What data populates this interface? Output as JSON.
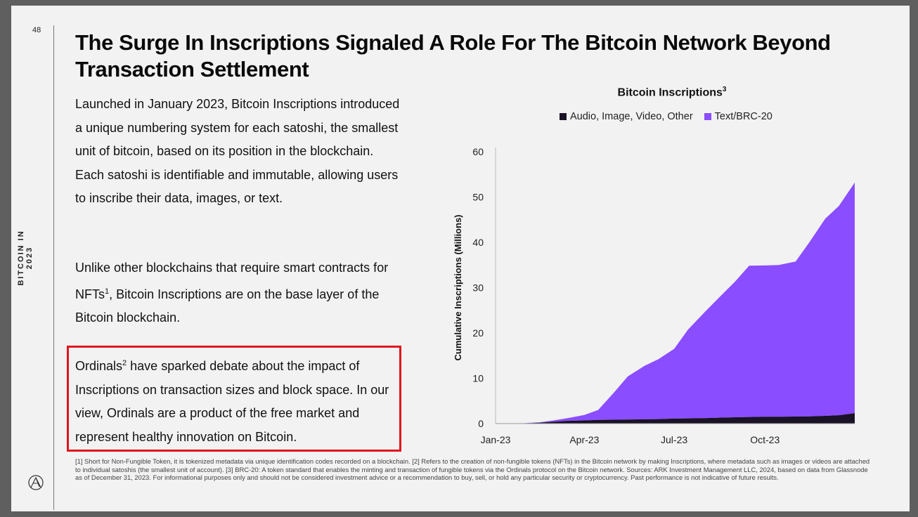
{
  "page_number": "48",
  "side_label": "BITCOIN IN 2023",
  "title": "The Surge In Inscriptions Signaled A Role For The Bitcoin Network Beyond Transaction Settlement",
  "paragraphs": {
    "p1": "Launched in January 2023, Bitcoin Inscriptions introduced a unique numbering system for each satoshi, the smallest unit of bitcoin, based on its position in the blockchain. Each satoshi is identifiable and immutable, allowing users to inscribe their data, images, or text.",
    "p2_before": "Unlike other blockchains that require smart contracts for NFTs",
    "p2_sup": "1",
    "p2_after": ", Bitcoin Inscriptions are on the base layer of the Bitcoin blockchain.",
    "p3_before": "Ordinals",
    "p3_sup": "2",
    "p3_after": " have sparked debate about the impact of Inscriptions on transaction sizes and block space. In our view, Ordinals are a product of the free market and represent healthy innovation on Bitcoin."
  },
  "footnote": "[1] Short for Non-Fungible Token, it is tokenized metadata via unique identification codes recorded on a blockchain. [2] Refers to the creation of non-fungible tokens (NFTs) in the Bitcoin network by making Inscriptions, where metadata such as images or videos are attached to individual satoshis (the smallest unit of account). [3] BRC-20: A token standard that enables the minting and transaction of fungible tokens via the Ordinals protocol on the Bitcoin network. Sources: ARK Investment Management LLC, 2024, based on data from Glassnode as of December 31, 2023. For informational purposes only and should not be considered investment advice or a recommendation to buy, sell, or hold any particular security or cryptocurrency. Past performance is not indicative of future results.",
  "chart_data": {
    "type": "area",
    "stacked": true,
    "title": "Bitcoin Inscriptions",
    "title_sup": "3",
    "ylabel": "Cumulative Inscriptions (Millions)",
    "xlabel": "",
    "ylim": [
      0,
      60
    ],
    "yticks": [
      0,
      10,
      20,
      30,
      40,
      50,
      60
    ],
    "xticks": [
      "Jan-23",
      "Apr-23",
      "Jul-23",
      "Oct-23"
    ],
    "xtick_dates": [
      "2023-01-01",
      "2023-04-01",
      "2023-07-01",
      "2023-10-01"
    ],
    "x_range": [
      "2023-01-01",
      "2023-12-31"
    ],
    "legend_position": "top",
    "colors": {
      "audio_image_video_other": "#1a1226",
      "text_brc20": "#8a4dff"
    },
    "x": [
      "2023-01-01",
      "2023-01-31",
      "2023-02-15",
      "2023-03-01",
      "2023-03-15",
      "2023-04-01",
      "2023-04-15",
      "2023-05-01",
      "2023-05-15",
      "2023-06-01",
      "2023-06-15",
      "2023-07-01",
      "2023-07-15",
      "2023-08-01",
      "2023-08-15",
      "2023-09-01",
      "2023-09-15",
      "2023-10-01",
      "2023-10-15",
      "2023-11-01",
      "2023-11-15",
      "2023-12-01",
      "2023-12-15",
      "2023-12-31"
    ],
    "series": [
      {
        "name": "Audio, Image, Video, Other",
        "values": [
          0,
          0.05,
          0.2,
          0.4,
          0.6,
          0.7,
          0.8,
          0.85,
          0.9,
          0.95,
          1.0,
          1.1,
          1.15,
          1.2,
          1.3,
          1.4,
          1.45,
          1.5,
          1.5,
          1.55,
          1.6,
          1.7,
          1.85,
          2.3
        ]
      },
      {
        "name": "Text/BRC-20",
        "values": [
          0,
          0.05,
          0.1,
          0.3,
          0.6,
          1.2,
          2.2,
          6.0,
          9.5,
          11.8,
          13.2,
          15.4,
          19.6,
          23.4,
          26.4,
          30.0,
          33.4,
          33.4,
          33.5,
          34.2,
          38.4,
          43.5,
          46.2,
          50.9
        ]
      }
    ]
  }
}
